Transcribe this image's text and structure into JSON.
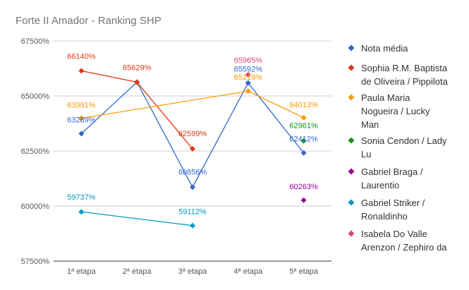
{
  "chart_data": {
    "type": "line",
    "title": "Forte II Amador - Ranking SHP",
    "xlabel": "",
    "ylabel": "",
    "categories": [
      "1ª etapa",
      "2ª etapa",
      "3ª etapa",
      "4ª etapa",
      "5ª etapa"
    ],
    "ylim": [
      57500,
      67500
    ],
    "yticks": [
      57500,
      60000,
      62500,
      65000,
      67500
    ],
    "ytick_labels": [
      "57500%",
      "60000%",
      "62500%",
      "65000%",
      "67500%"
    ],
    "grid": true,
    "legend_position": "right",
    "series": [
      {
        "name": "Nota média",
        "color": "#3366cc",
        "values": [
          63289,
          65629,
          60856,
          65592,
          62412
        ],
        "labels": [
          "63289%",
          null,
          "60856%",
          "65592%",
          "62412%"
        ]
      },
      {
        "name": "Sophia R.M. Baptista de Oliveira / Pippilota",
        "color": "#dc3912",
        "values": [
          66140,
          65629,
          62599,
          null,
          null
        ],
        "labels": [
          "66140%",
          "65629%",
          "62599%",
          null,
          null
        ]
      },
      {
        "name": "Paula Maria Nogueira / Lucky Man",
        "color": "#ff9900",
        "values": [
          63991,
          null,
          null,
          65219,
          64013
        ],
        "labels": [
          "63991%",
          null,
          null,
          "65219%",
          "64013%"
        ]
      },
      {
        "name": "Sonia Cendon / Lady Lu",
        "color": "#109618",
        "values": [
          null,
          null,
          null,
          null,
          62961
        ],
        "labels": [
          null,
          null,
          null,
          null,
          "62961%"
        ]
      },
      {
        "name": "Gabriel Braga / Laurentio",
        "color": "#990099",
        "values": [
          null,
          null,
          null,
          null,
          60263
        ],
        "labels": [
          null,
          null,
          null,
          null,
          "60263%"
        ]
      },
      {
        "name": "Gabriel Striker / Ronaldinho",
        "color": "#0099c6",
        "values": [
          59737,
          null,
          59112,
          null,
          null
        ],
        "labels": [
          "59737%",
          null,
          "59112%",
          null,
          null
        ]
      },
      {
        "name": "Isabela Do Valle Arenzon / Zephiro da",
        "color": "#dd4477",
        "values": [
          null,
          null,
          null,
          65965,
          null
        ],
        "labels": [
          null,
          null,
          null,
          "65965%",
          null
        ]
      }
    ],
    "legend_lines": [
      [
        "Nota média"
      ],
      [
        "Sophia R.M. Baptista",
        "de Oliveira / Pippilota"
      ],
      [
        "Paula Maria",
        "Nogueira / Lucky",
        "Man"
      ],
      [
        "Sonia Cendon / Lady",
        "Lu"
      ],
      [
        "Gabriel Braga /",
        "Laurentio"
      ],
      [
        " Gabriel Striker /",
        "Ronaldinho"
      ],
      [
        "Isabela Do Valle",
        "Arenzon / Zephiro da"
      ]
    ]
  }
}
